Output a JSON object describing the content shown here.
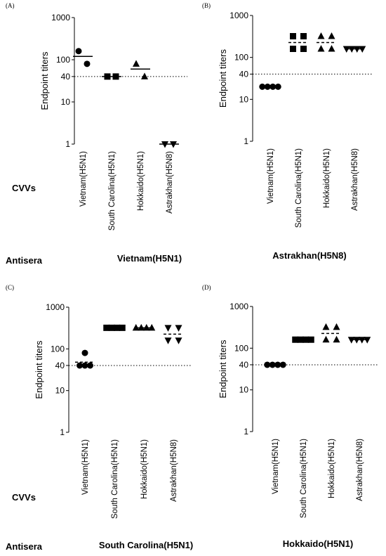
{
  "side_labels": {
    "cvvs": "CVVs",
    "antisera": "Antisera"
  },
  "chart_data": [
    {
      "panel": "(A)",
      "type": "scatter",
      "ylabel": "Endpoint titers",
      "yscale": "log",
      "ylim": [
        1,
        1000
      ],
      "yticks": [
        "1",
        "10",
        "40",
        "100",
        "1000"
      ],
      "threshold": 40,
      "categories": [
        "Vietnam(H5N1)",
        "South Carolina(H5N1)",
        "Hokkaido(H5N1)",
        "Astrakhan(H5N8)"
      ],
      "antisera": "Vietnam(H5N1)",
      "series": [
        {
          "category": "Vietnam(H5N1)",
          "marker": "circle",
          "values": [
            160,
            80
          ],
          "mean": 120,
          "mean_style": "solid"
        },
        {
          "category": "South Carolina(H5N1)",
          "marker": "square",
          "values": [
            40,
            40
          ],
          "mean": 40,
          "mean_style": "solid"
        },
        {
          "category": "Hokkaido(H5N1)",
          "marker": "triangle-up",
          "values": [
            80,
            40
          ],
          "mean": 60,
          "mean_style": "solid"
        },
        {
          "category": "Astrakhan(H5N8)",
          "marker": "triangle-down",
          "values": [
            1,
            1
          ],
          "mean": 1,
          "mean_style": "solid"
        }
      ]
    },
    {
      "panel": "(B)",
      "type": "scatter",
      "ylabel": "Endpoint titers",
      "yscale": "log",
      "ylim": [
        1,
        1000
      ],
      "yticks": [
        "1",
        "10",
        "40",
        "100",
        "1000"
      ],
      "threshold": 40,
      "categories": [
        "Vietnam(H5N1)",
        "South Carolina(H5N1)",
        "Hokkaido(H5N1)",
        "Astrakhan(H5N8)"
      ],
      "antisera": "Astrakhan(H5N8)",
      "series": [
        {
          "category": "Vietnam(H5N1)",
          "marker": "circle",
          "values": [
            20,
            20,
            20,
            20
          ],
          "mean": 20,
          "mean_style": "solid"
        },
        {
          "category": "South Carolina(H5N1)",
          "marker": "square",
          "values": [
            320,
            320,
            160,
            160
          ],
          "mean": 226,
          "mean_style": "dashed"
        },
        {
          "category": "Hokkaido(H5N1)",
          "marker": "triangle-up",
          "values": [
            320,
            320,
            160,
            160
          ],
          "mean": 226,
          "mean_style": "dashed"
        },
        {
          "category": "Astrakhan(H5N8)",
          "marker": "triangle-down",
          "values": [
            160,
            160,
            160,
            160
          ],
          "mean": 160,
          "mean_style": "solid"
        }
      ]
    },
    {
      "panel": "(C)",
      "type": "scatter",
      "ylabel": "Endpoint titers",
      "yscale": "log",
      "ylim": [
        1,
        1000
      ],
      "yticks": [
        "1",
        "10",
        "40",
        "100",
        "1000"
      ],
      "threshold": 40,
      "categories": [
        "Vietnam(H5N1)",
        "South Carolina(H5N1)",
        "Hokkaido(H5N1)",
        "Astrakhan(H5N8)"
      ],
      "antisera": "South Carolina(H5N1)",
      "series": [
        {
          "category": "Vietnam(H5N1)",
          "marker": "circle",
          "values": [
            80,
            40,
            40,
            40
          ],
          "mean": 48,
          "mean_style": "dashed"
        },
        {
          "category": "South Carolina(H5N1)",
          "marker": "square",
          "values": [
            320,
            320,
            320,
            320
          ],
          "mean": 320,
          "mean_style": "solid"
        },
        {
          "category": "Hokkaido(H5N1)",
          "marker": "triangle-up",
          "values": [
            320,
            320,
            320,
            320
          ],
          "mean": 320,
          "mean_style": "solid"
        },
        {
          "category": "Astrakhan(H5N8)",
          "marker": "triangle-down",
          "values": [
            320,
            320,
            160,
            160
          ],
          "mean": 226,
          "mean_style": "dashed"
        }
      ]
    },
    {
      "panel": "(D)",
      "type": "scatter",
      "ylabel": "Endpoint titers",
      "yscale": "log",
      "ylim": [
        1,
        1000
      ],
      "yticks": [
        "1",
        "10",
        "40",
        "100",
        "1000"
      ],
      "threshold": 40,
      "categories": [
        "Vietnam(H5N1)",
        "South Carolina(H5N1)",
        "Hokkaido(H5N1)",
        "Astrakhan(H5N8)"
      ],
      "antisera": "Hokkaido(H5N1)",
      "series": [
        {
          "category": "Vietnam(H5N1)",
          "marker": "circle",
          "values": [
            40,
            40,
            40,
            40
          ],
          "mean": 40,
          "mean_style": "solid"
        },
        {
          "category": "South Carolina(H5N1)",
          "marker": "square",
          "values": [
            160,
            160,
            160,
            160
          ],
          "mean": 160,
          "mean_style": "solid"
        },
        {
          "category": "Hokkaido(H5N1)",
          "marker": "triangle-up",
          "values": [
            320,
            320,
            160,
            160
          ],
          "mean": 226,
          "mean_style": "dashed"
        },
        {
          "category": "Astrakhan(H5N8)",
          "marker": "triangle-down",
          "values": [
            160,
            160,
            160,
            160
          ],
          "mean": 160,
          "mean_style": "solid"
        }
      ]
    }
  ]
}
